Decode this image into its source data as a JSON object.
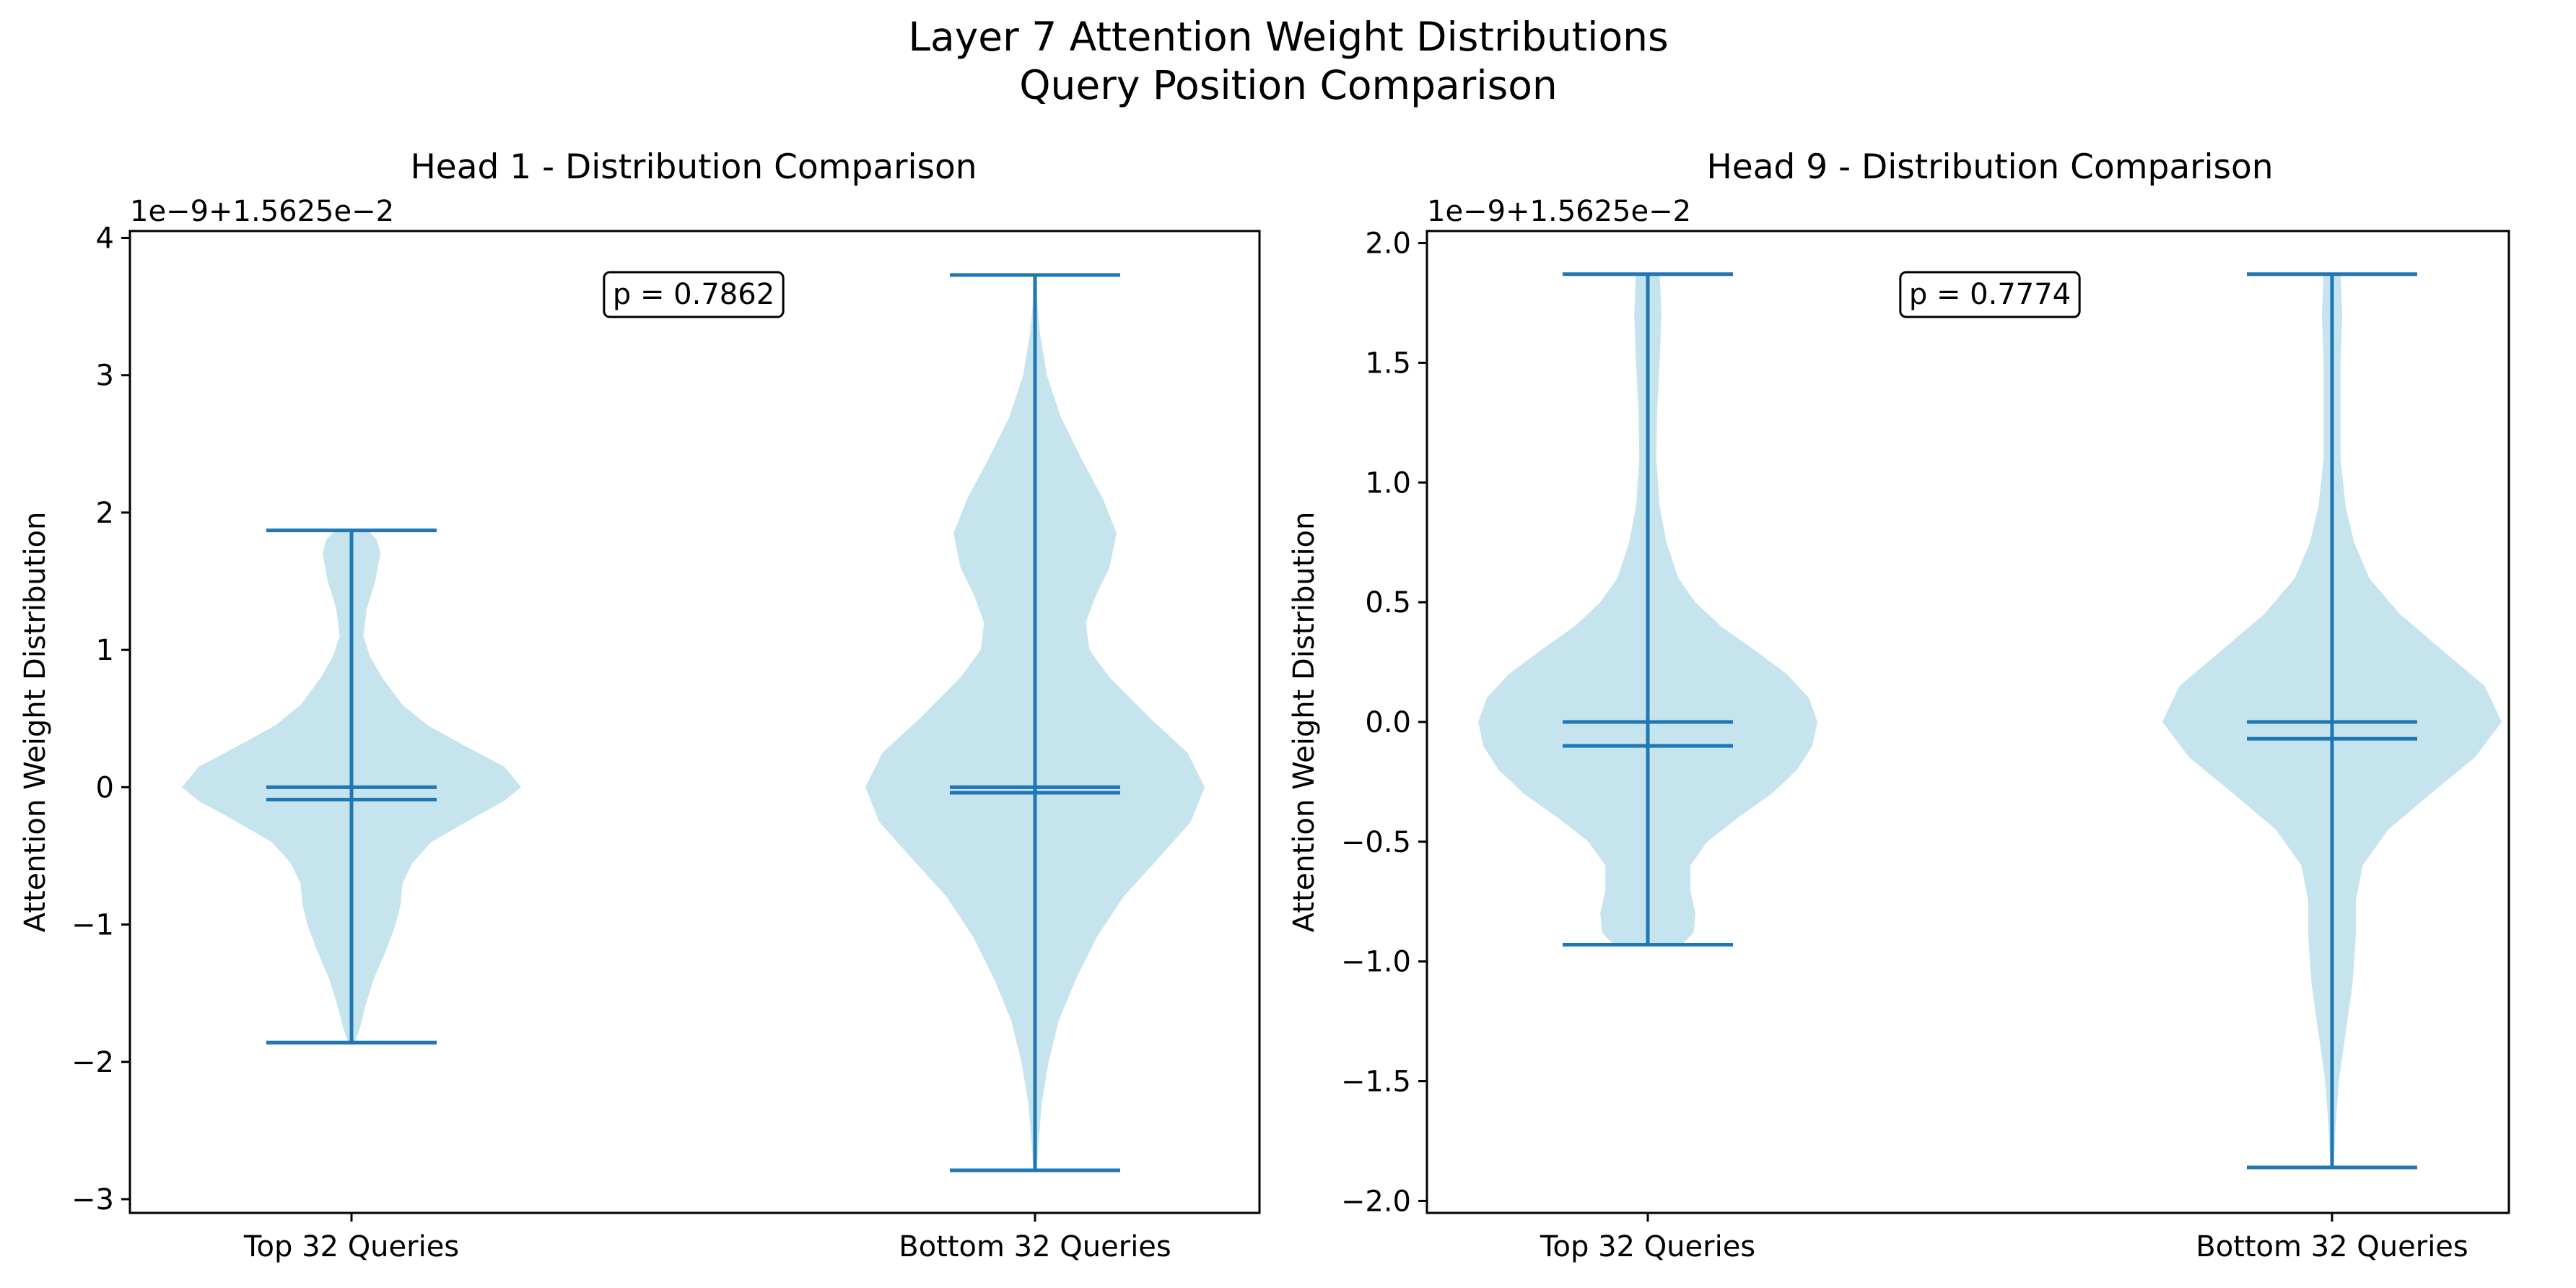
{
  "figure": {
    "title_line1": "Layer 7 Attention Weight Distributions",
    "title_line2": "Query Position Comparison"
  },
  "colors": {
    "violin_fill": "#add8e6",
    "stat_lines": "#1f77b4",
    "axes": "#000000",
    "annotation_box_edge": "#000000",
    "annotation_box_fill": "#ffffff"
  },
  "chart_data": [
    {
      "type": "violin",
      "title": "Head 1 - Distribution Comparison",
      "ylabel": "Attention Weight Distribution",
      "offset_text": "1e−9+1.5625e−2",
      "categories": [
        "Top 32 Queries",
        "Bottom 32 Queries"
      ],
      "yticks": [
        -3,
        -2,
        -1,
        0,
        1,
        2,
        3,
        4
      ],
      "ytick_labels": [
        "−3",
        "−2",
        "−1",
        "0",
        "1",
        "2",
        "3",
        "4"
      ],
      "ylim": [
        -3.1,
        4.05
      ],
      "annotation": "p = 0.7862",
      "grid": false,
      "series": [
        {
          "category": "Top 32 Queries",
          "min": -1.86,
          "max": 1.87,
          "mean": -0.09,
          "median": 0.0,
          "density": [
            [
              -1.86,
              0.02
            ],
            [
              -1.75,
              0.05
            ],
            [
              -1.6,
              0.08
            ],
            [
              -1.4,
              0.13
            ],
            [
              -1.2,
              0.2
            ],
            [
              -1.0,
              0.26
            ],
            [
              -0.85,
              0.29
            ],
            [
              -0.7,
              0.3
            ],
            [
              -0.55,
              0.36
            ],
            [
              -0.4,
              0.47
            ],
            [
              -0.25,
              0.68
            ],
            [
              -0.1,
              0.9
            ],
            [
              0.0,
              1.0
            ],
            [
              0.15,
              0.9
            ],
            [
              0.3,
              0.67
            ],
            [
              0.45,
              0.45
            ],
            [
              0.6,
              0.3
            ],
            [
              0.8,
              0.18
            ],
            [
              0.95,
              0.11
            ],
            [
              1.1,
              0.07
            ],
            [
              1.3,
              0.09
            ],
            [
              1.5,
              0.14
            ],
            [
              1.7,
              0.17
            ],
            [
              1.8,
              0.15
            ],
            [
              1.87,
              0.1
            ]
          ]
        },
        {
          "category": "Bottom 32 Queries",
          "min": -2.79,
          "max": 3.73,
          "mean": -0.04,
          "median": 0.0,
          "density": [
            [
              -2.79,
              0.01
            ],
            [
              -2.6,
              0.02
            ],
            [
              -2.3,
              0.04
            ],
            [
              -2.0,
              0.08
            ],
            [
              -1.7,
              0.14
            ],
            [
              -1.4,
              0.24
            ],
            [
              -1.1,
              0.36
            ],
            [
              -0.8,
              0.52
            ],
            [
              -0.5,
              0.74
            ],
            [
              -0.25,
              0.92
            ],
            [
              0.0,
              1.0
            ],
            [
              0.25,
              0.9
            ],
            [
              0.5,
              0.68
            ],
            [
              0.8,
              0.44
            ],
            [
              1.0,
              0.32
            ],
            [
              1.2,
              0.3
            ],
            [
              1.4,
              0.36
            ],
            [
              1.6,
              0.44
            ],
            [
              1.85,
              0.48
            ],
            [
              2.1,
              0.4
            ],
            [
              2.4,
              0.27
            ],
            [
              2.7,
              0.15
            ],
            [
              3.0,
              0.07
            ],
            [
              3.3,
              0.03
            ],
            [
              3.5,
              0.015
            ],
            [
              3.73,
              0.01
            ]
          ]
        }
      ]
    },
    {
      "type": "violin",
      "title": "Head 9 - Distribution Comparison",
      "ylabel": "Attention Weight Distribution",
      "offset_text": "1e−9+1.5625e−2",
      "categories": [
        "Top 32 Queries",
        "Bottom 32 Queries"
      ],
      "yticks": [
        -2.0,
        -1.5,
        -1.0,
        -0.5,
        0.0,
        0.5,
        1.0,
        1.5,
        2.0
      ],
      "ytick_labels": [
        "−2.0",
        "−1.5",
        "−1.0",
        "−0.5",
        "0.0",
        "0.5",
        "1.0",
        "1.5",
        "2.0"
      ],
      "ylim": [
        -2.05,
        2.05
      ],
      "annotation": "p = 0.7774",
      "grid": false,
      "series": [
        {
          "category": "Top 32 Queries",
          "min": -0.93,
          "max": 1.87,
          "mean": -0.1,
          "median": 0.0,
          "density": [
            [
              -0.93,
              0.2
            ],
            [
              -0.88,
              0.27
            ],
            [
              -0.8,
              0.28
            ],
            [
              -0.7,
              0.25
            ],
            [
              -0.6,
              0.25
            ],
            [
              -0.5,
              0.35
            ],
            [
              -0.4,
              0.53
            ],
            [
              -0.3,
              0.73
            ],
            [
              -0.2,
              0.88
            ],
            [
              -0.1,
              0.97
            ],
            [
              0.0,
              1.0
            ],
            [
              0.1,
              0.95
            ],
            [
              0.2,
              0.82
            ],
            [
              0.3,
              0.63
            ],
            [
              0.4,
              0.43
            ],
            [
              0.5,
              0.28
            ],
            [
              0.6,
              0.18
            ],
            [
              0.75,
              0.11
            ],
            [
              0.9,
              0.07
            ],
            [
              1.1,
              0.05
            ],
            [
              1.3,
              0.055
            ],
            [
              1.5,
              0.07
            ],
            [
              1.7,
              0.08
            ],
            [
              1.8,
              0.075
            ],
            [
              1.87,
              0.07
            ]
          ]
        },
        {
          "category": "Bottom 32 Queries",
          "min": -1.86,
          "max": 1.87,
          "mean": -0.07,
          "median": 0.0,
          "density": [
            [
              -1.86,
              0.01
            ],
            [
              -1.7,
              0.02
            ],
            [
              -1.5,
              0.04
            ],
            [
              -1.3,
              0.08
            ],
            [
              -1.1,
              0.12
            ],
            [
              -0.9,
              0.14
            ],
            [
              -0.75,
              0.14
            ],
            [
              -0.6,
              0.18
            ],
            [
              -0.45,
              0.33
            ],
            [
              -0.3,
              0.58
            ],
            [
              -0.15,
              0.84
            ],
            [
              0.0,
              1.0
            ],
            [
              0.15,
              0.9
            ],
            [
              0.3,
              0.65
            ],
            [
              0.45,
              0.4
            ],
            [
              0.6,
              0.22
            ],
            [
              0.75,
              0.13
            ],
            [
              0.9,
              0.08
            ],
            [
              1.1,
              0.05
            ],
            [
              1.3,
              0.05
            ],
            [
              1.5,
              0.05
            ],
            [
              1.7,
              0.06
            ],
            [
              1.87,
              0.05
            ]
          ]
        }
      ]
    }
  ]
}
